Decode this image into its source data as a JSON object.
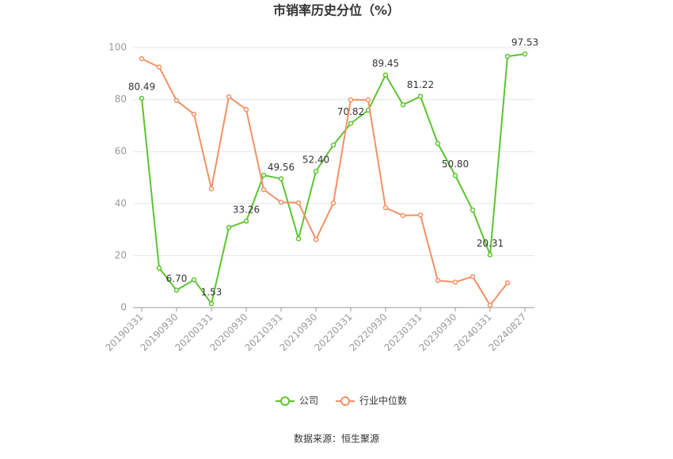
{
  "chart_data": {
    "type": "line",
    "title": "市销率历史分位（%）",
    "categories": [
      "20190331",
      null,
      "20190930",
      null,
      "20200331",
      null,
      "20200930",
      null,
      "20210331",
      null,
      "20210930",
      null,
      "20220331",
      null,
      "20220930",
      null,
      "20230331",
      null,
      "20230930",
      null,
      "20240331",
      null,
      "20240827"
    ],
    "series": [
      {
        "name": "公司",
        "color": "#5cc52f",
        "values": [
          80.49,
          15.2,
          6.7,
          10.7,
          1.53,
          30.8,
          33.26,
          50.9,
          49.56,
          26.5,
          52.4,
          62.5,
          70.82,
          75.9,
          89.45,
          78.0,
          81.22,
          63.1,
          50.8,
          37.5,
          20.31,
          96.6,
          97.53
        ],
        "value_labels": [
          "80.49",
          null,
          "6.70",
          null,
          "1.53",
          null,
          "33.26",
          null,
          "49.56",
          null,
          "52.40",
          null,
          "70.82",
          null,
          "89.45",
          null,
          "81.22",
          null,
          "50.80",
          null,
          "20.31",
          null,
          "97.53"
        ]
      },
      {
        "name": "行业中位数",
        "color": "#f39064",
        "values": [
          95.7,
          92.5,
          79.6,
          74.4,
          45.7,
          81.1,
          76.2,
          45.4,
          40.5,
          40.3,
          26.2,
          40.2,
          79.9,
          79.9,
          38.4,
          35.4,
          35.6,
          10.4,
          9.8,
          11.9,
          0.9,
          9.5,
          null
        ]
      }
    ],
    "ylim": [
      0,
      100
    ],
    "yticks": [
      0,
      20,
      40,
      60,
      80,
      100
    ],
    "grid": true,
    "source": "数据来源：恒生聚源"
  }
}
